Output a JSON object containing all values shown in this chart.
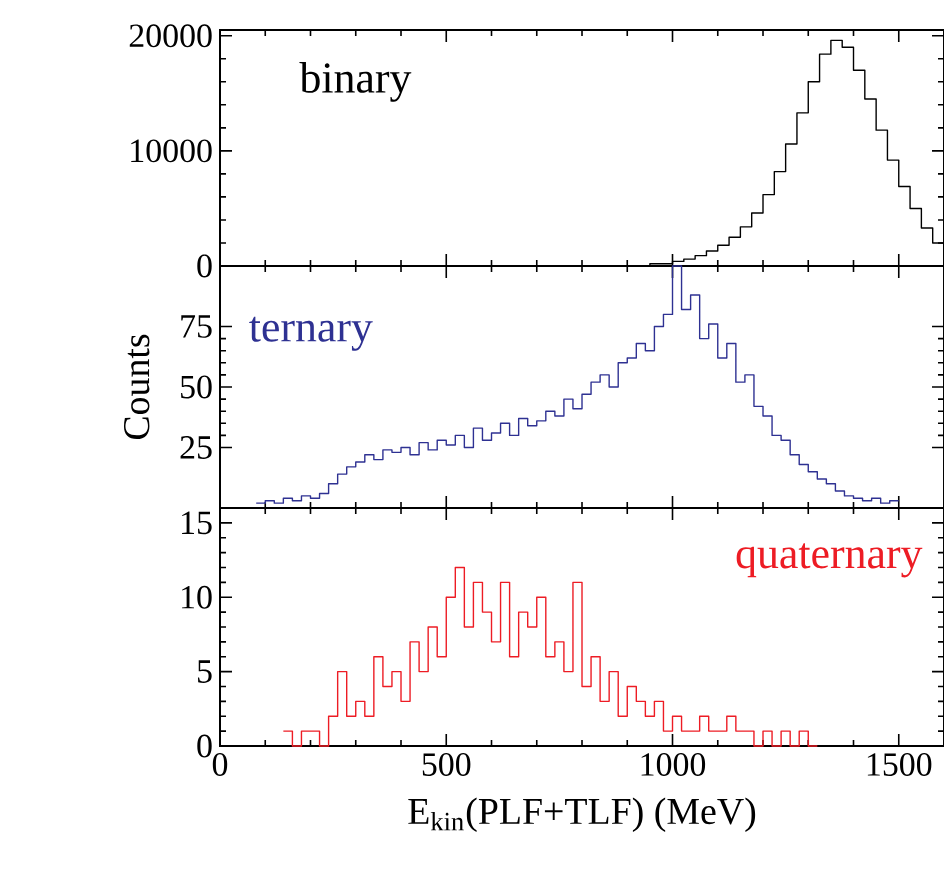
{
  "chart_data": [
    {
      "type": "histogram",
      "xlim": [
        0,
        1600
      ],
      "xticks": [
        0,
        500,
        1000,
        1500
      ],
      "ylim": [
        0,
        20500
      ],
      "yticks": [
        0,
        10000,
        20000
      ],
      "tick_labels": "y",
      "bins": [
        900,
        925,
        950,
        975,
        1000,
        1025,
        1050,
        1075,
        1100,
        1125,
        1150,
        1175,
        1200,
        1225,
        1250,
        1275,
        1300,
        1325,
        1350,
        1375,
        1400,
        1425,
        1450,
        1475,
        1500,
        1525,
        1550,
        1575,
        1600
      ],
      "series": [
        {
          "name": "binary",
          "color": "#000000",
          "values": [
            0,
            0,
            200,
            200,
            400,
            600,
            900,
            1300,
            1800,
            2500,
            3400,
            4600,
            6200,
            8200,
            10600,
            13300,
            16000,
            18400,
            19600,
            19000,
            17000,
            14500,
            11800,
            9200,
            6900,
            5000,
            3300,
            2000
          ]
        }
      ]
    },
    {
      "type": "histogram",
      "xlim": [
        0,
        1600
      ],
      "xticks": [
        0,
        500,
        1000,
        1500
      ],
      "ylim": [
        0,
        100
      ],
      "yticks": [
        25,
        50,
        75
      ],
      "tick_labels": "y",
      "ylabel": "Counts",
      "bins": [
        80,
        100,
        120,
        140,
        160,
        180,
        200,
        220,
        240,
        260,
        280,
        300,
        320,
        340,
        360,
        380,
        400,
        420,
        440,
        460,
        480,
        500,
        520,
        540,
        560,
        580,
        600,
        620,
        640,
        660,
        680,
        700,
        720,
        740,
        760,
        780,
        800,
        820,
        840,
        860,
        880,
        900,
        920,
        940,
        960,
        980,
        1000,
        1020,
        1040,
        1060,
        1080,
        1100,
        1120,
        1140,
        1160,
        1180,
        1200,
        1220,
        1240,
        1260,
        1280,
        1300,
        1320,
        1340,
        1360,
        1380,
        1400,
        1420,
        1440,
        1460,
        1480,
        1500
      ],
      "series": [
        {
          "name": "ternary",
          "color": "#2e3192",
          "values": [
            2,
            3,
            2,
            4,
            3,
            5,
            4,
            6,
            10,
            14,
            17,
            19,
            22,
            20,
            24,
            23,
            25,
            22,
            27,
            24,
            28,
            26,
            30,
            25,
            33,
            28,
            31,
            35,
            30,
            37,
            34,
            36,
            40,
            38,
            45,
            41,
            47,
            52,
            55,
            50,
            60,
            62,
            68,
            65,
            75,
            80,
            100,
            82,
            88,
            70,
            76,
            62,
            68,
            52,
            55,
            42,
            38,
            30,
            28,
            22,
            18,
            15,
            12,
            10,
            7,
            5,
            4,
            3,
            4,
            2,
            3
          ]
        }
      ]
    },
    {
      "type": "histogram",
      "xlim": [
        0,
        1600
      ],
      "xticks": [
        0,
        500,
        1000,
        1500
      ],
      "ylim": [
        0,
        16
      ],
      "yticks": [
        0,
        5,
        10,
        15
      ],
      "xlabel": "E$_{kin}$(PLF+TLF)  (MeV)",
      "bins": [
        140,
        160,
        180,
        200,
        220,
        240,
        260,
        280,
        300,
        320,
        340,
        360,
        380,
        400,
        420,
        440,
        460,
        480,
        500,
        520,
        540,
        560,
        580,
        600,
        620,
        640,
        660,
        680,
        700,
        720,
        740,
        760,
        780,
        800,
        820,
        840,
        860,
        880,
        900,
        920,
        940,
        960,
        980,
        1000,
        1020,
        1040,
        1060,
        1080,
        1100,
        1120,
        1140,
        1160,
        1180,
        1200,
        1220,
        1240,
        1260,
        1280,
        1300,
        1320
      ],
      "series": [
        {
          "name": "quaternary",
          "color": "#ed1c24",
          "values": [
            1,
            0,
            1,
            1,
            0,
            2,
            5,
            2,
            3,
            2,
            6,
            4,
            5,
            3,
            7,
            5,
            8,
            6,
            10,
            12,
            8,
            11,
            9,
            7,
            11,
            6,
            9,
            8,
            10,
            6,
            7,
            5,
            11,
            4,
            6,
            3,
            5,
            2,
            4,
            3,
            2,
            3,
            1,
            2,
            1,
            1,
            2,
            1,
            1,
            2,
            1,
            1,
            0,
            1,
            0,
            1,
            0,
            1,
            0
          ]
        }
      ]
    }
  ]
}
